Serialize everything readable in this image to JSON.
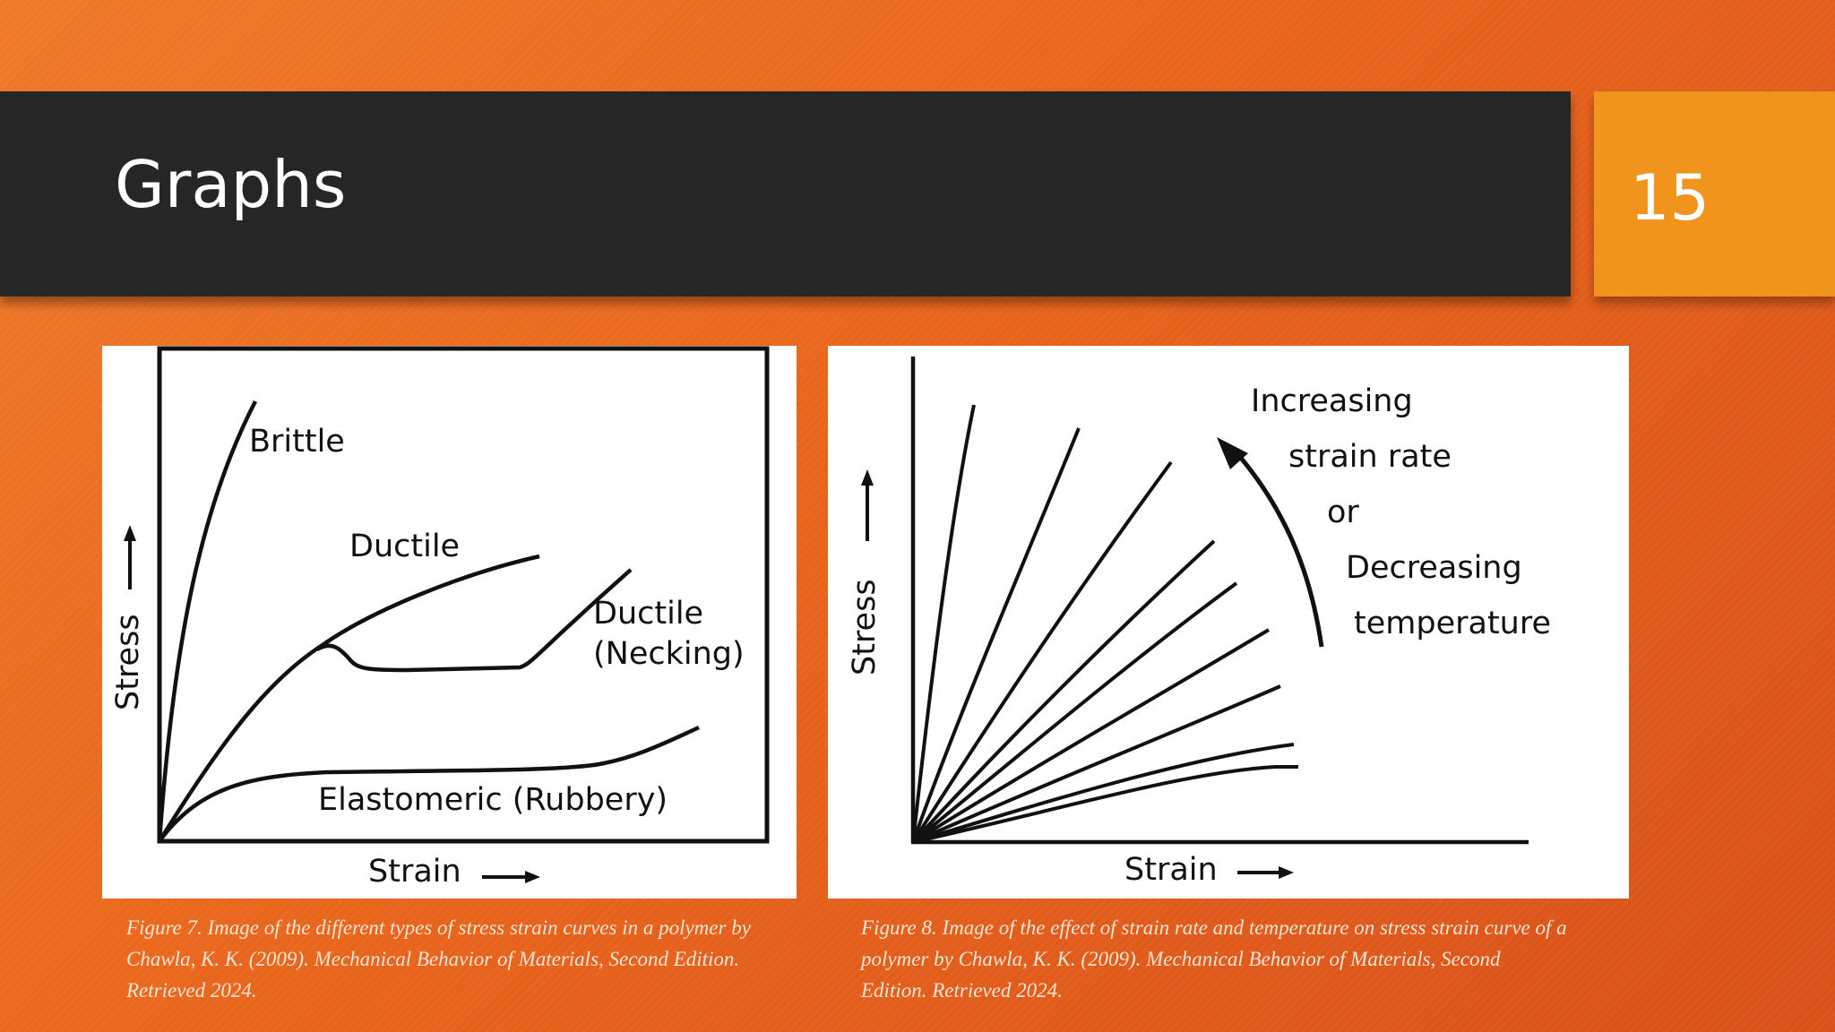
{
  "slide": {
    "title": "Graphs",
    "number": "15",
    "colors": {
      "background": "#e8651c",
      "title_bar": "#262626",
      "number_box": "#f0941e"
    }
  },
  "figure7": {
    "ylabel": "Stress",
    "xlabel": "Strain",
    "labels": {
      "brittle": "Brittle",
      "ductile": "Ductile",
      "necking_1": "Ductile",
      "necking_2": "(Necking)",
      "elastomeric": "Elastomeric (Rubbery)"
    },
    "caption": "Figure 7. Image of the different types of stress strain curves in a polymer by Chawla, K. K. (2009). Mechanical Behavior of Materials, Second Edition. Retrieved 2024."
  },
  "figure8": {
    "ylabel": "Stress",
    "xlabel": "Strain",
    "annotation_lines": [
      "Increasing",
      "strain rate",
      "or",
      "Decreasing",
      "temperature"
    ],
    "caption": "Figure 8. Image of the effect of strain rate and temperature on stress strain curve of a polymer by Chawla, K. K. (2009). Mechanical Behavior of Materials, Second Edition. Retrieved 2024."
  }
}
